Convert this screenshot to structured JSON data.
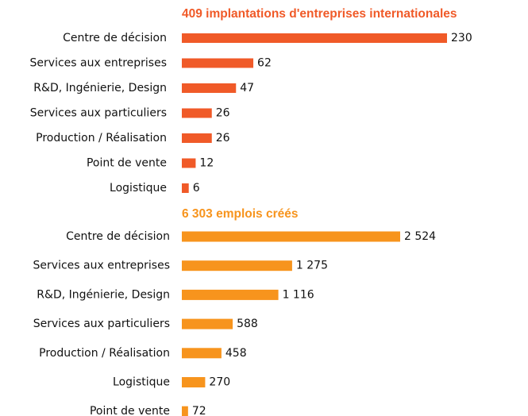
{
  "chart_data": [
    {
      "type": "bar",
      "orientation": "horizontal",
      "title": "409 implantations d'entreprises internationales",
      "color": "#f05a28",
      "categories": [
        "Centre de décision",
        "Services aux entreprises",
        "R&D, Ingénierie, Design",
        "Services aux particuliers",
        "Production / Réalisation",
        "Point de vente",
        "Logistique"
      ],
      "values": [
        230,
        62,
        47,
        26,
        26,
        12,
        6
      ]
    },
    {
      "type": "bar",
      "orientation": "horizontal",
      "title": "6 303 emplois créés",
      "color": "#f7941d",
      "categories": [
        "Centre de décision",
        "Services aux entreprises",
        "R&D, Ingénierie, Design",
        "Services aux particuliers",
        "Production / Réalisation",
        "Logistique",
        "Point de vente"
      ],
      "values": [
        2524,
        1275,
        1116,
        588,
        458,
        270,
        72
      ],
      "value_labels": [
        "2 524",
        "1 275",
        "1 116",
        "588",
        "458",
        "270",
        "72"
      ]
    }
  ]
}
